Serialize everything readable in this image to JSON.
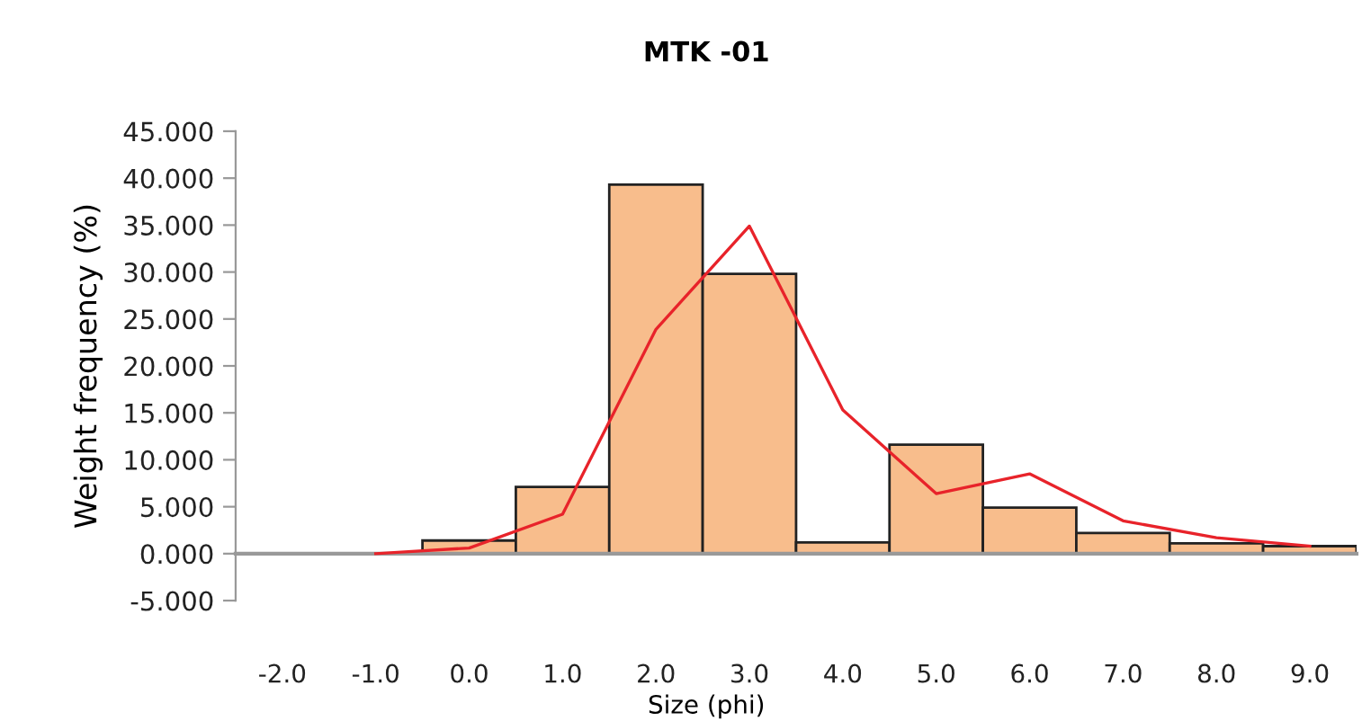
{
  "chart_data": {
    "type": "bar",
    "title": "MTK -01",
    "xlabel": "Size (phi)",
    "ylabel": "Weight frequency (%)",
    "categories": [
      "-2.0",
      "-1.0",
      "0.0",
      "1.0",
      "2.0",
      "3.0",
      "4.0",
      "5.0",
      "6.0",
      "7.0",
      "8.0",
      "9.0"
    ],
    "series": [
      {
        "color": "#f8bd8c",
        "values": [
          null,
          null,
          1.4,
          7.1,
          39.3,
          29.8,
          1.2,
          11.6,
          4.9,
          2.2,
          1.1,
          0.8
        ]
      },
      {
        "type": "line",
        "color": "#e8232a",
        "values": [
          null,
          0,
          0.6,
          4.2,
          23.9,
          34.9,
          15.3,
          6.4,
          8.5,
          3.5,
          1.7,
          0.8
        ]
      }
    ],
    "ylim": [
      -5,
      45
    ],
    "yticks": [
      {
        "value": -5,
        "label": "-5.000"
      },
      {
        "value": 0,
        "label": "0.000"
      },
      {
        "value": 5,
        "label": "5.000"
      },
      {
        "value": 10,
        "label": "10.000"
      },
      {
        "value": 15,
        "label": "15.000"
      },
      {
        "value": 20,
        "label": "20.000"
      },
      {
        "value": 25,
        "label": "25.000"
      },
      {
        "value": 30,
        "label": "30.000"
      },
      {
        "value": 35,
        "label": "35.000"
      },
      {
        "value": 40,
        "label": "40.000"
      },
      {
        "value": 45,
        "label": "45.000"
      }
    ],
    "legend": false,
    "marker": "none",
    "line_style": "solid"
  }
}
